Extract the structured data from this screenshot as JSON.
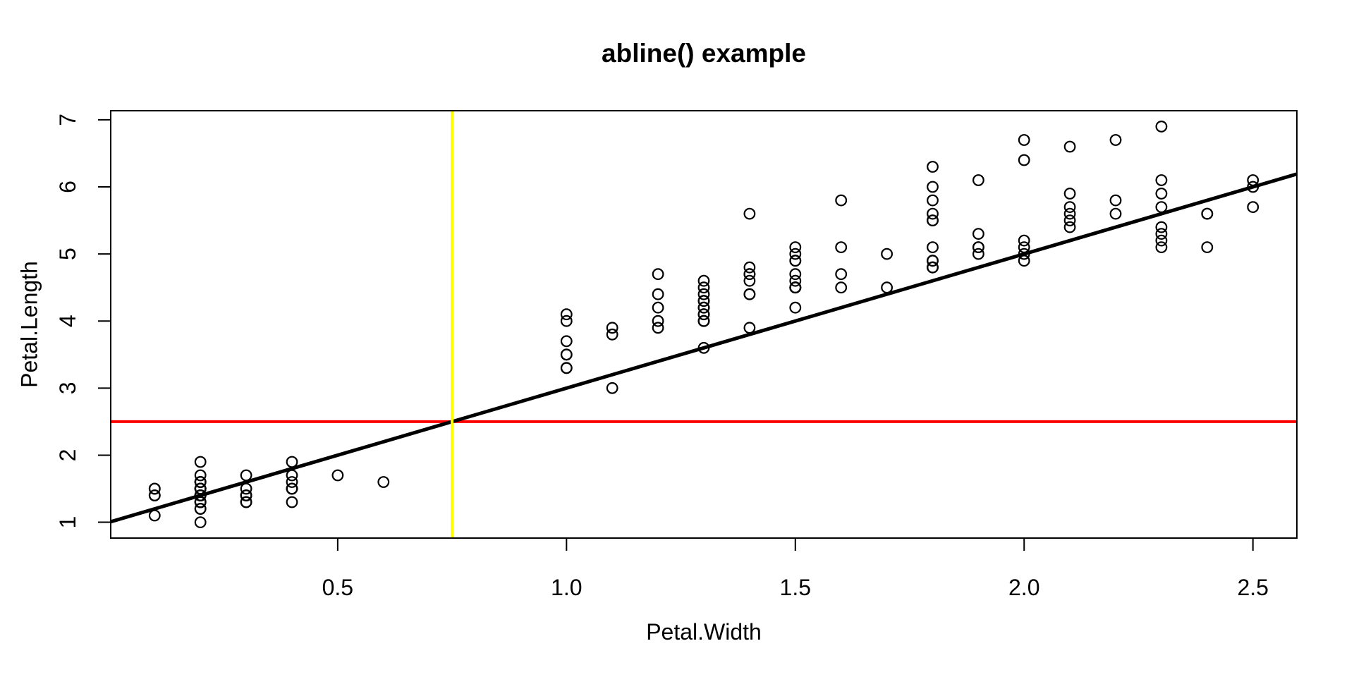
{
  "chart_data": {
    "type": "scatter",
    "title": "abline() example",
    "xlabel": "Petal.Width",
    "ylabel": "Petal.Length",
    "grid": false,
    "legend": "none",
    "background": "#FFFFFF",
    "axis_color": "#000000",
    "point_color": "#000000",
    "xlim": [
      0.004,
      2.596
    ],
    "ylim": [
      0.764,
      7.136
    ],
    "x_ticks": [
      {
        "v": 0.5,
        "label": "0.5"
      },
      {
        "v": 1.0,
        "label": "1.0"
      },
      {
        "v": 1.5,
        "label": "1.5"
      },
      {
        "v": 2.0,
        "label": "2.0"
      },
      {
        "v": 2.5,
        "label": "2.5"
      }
    ],
    "y_ticks": [
      {
        "v": 1,
        "label": "1"
      },
      {
        "v": 2,
        "label": "2"
      },
      {
        "v": 3,
        "label": "3"
      },
      {
        "v": 4,
        "label": "4"
      },
      {
        "v": 5,
        "label": "5"
      },
      {
        "v": 6,
        "label": "6"
      },
      {
        "v": 7,
        "label": "7"
      }
    ],
    "lines": [
      {
        "name": "h-reference-line",
        "kind": "h",
        "y": 2.5,
        "color": "#FF0000",
        "width": 4
      },
      {
        "name": "regression-line",
        "kind": "ab",
        "intercept": 1,
        "slope": 2,
        "color": "#000000",
        "width": 5
      },
      {
        "name": "v-reference-line",
        "kind": "v",
        "x": 0.75,
        "color": "#FFFF00",
        "width": 4
      }
    ],
    "points": [
      [
        0.2,
        1.4
      ],
      [
        0.2,
        1.4
      ],
      [
        0.2,
        1.3
      ],
      [
        0.2,
        1.5
      ],
      [
        0.2,
        1.4
      ],
      [
        0.4,
        1.7
      ],
      [
        0.3,
        1.4
      ],
      [
        0.2,
        1.5
      ],
      [
        0.2,
        1.4
      ],
      [
        0.1,
        1.5
      ],
      [
        0.2,
        1.5
      ],
      [
        0.2,
        1.6
      ],
      [
        0.1,
        1.4
      ],
      [
        0.1,
        1.1
      ],
      [
        0.2,
        1.2
      ],
      [
        0.4,
        1.5
      ],
      [
        0.4,
        1.3
      ],
      [
        0.3,
        1.4
      ],
      [
        0.3,
        1.7
      ],
      [
        0.3,
        1.5
      ],
      [
        0.2,
        1.7
      ],
      [
        0.4,
        1.5
      ],
      [
        0.2,
        1.0
      ],
      [
        0.5,
        1.7
      ],
      [
        0.2,
        1.9
      ],
      [
        0.2,
        1.6
      ],
      [
        0.4,
        1.6
      ],
      [
        0.2,
        1.5
      ],
      [
        0.2,
        1.4
      ],
      [
        0.2,
        1.6
      ],
      [
        0.2,
        1.6
      ],
      [
        0.4,
        1.5
      ],
      [
        0.1,
        1.5
      ],
      [
        0.2,
        1.4
      ],
      [
        0.2,
        1.5
      ],
      [
        0.2,
        1.2
      ],
      [
        0.2,
        1.3
      ],
      [
        0.1,
        1.4
      ],
      [
        0.2,
        1.3
      ],
      [
        0.2,
        1.5
      ],
      [
        0.3,
        1.3
      ],
      [
        0.3,
        1.3
      ],
      [
        0.2,
        1.3
      ],
      [
        0.6,
        1.6
      ],
      [
        0.4,
        1.9
      ],
      [
        0.3,
        1.4
      ],
      [
        0.2,
        1.6
      ],
      [
        0.2,
        1.4
      ],
      [
        0.2,
        1.5
      ],
      [
        0.2,
        1.4
      ],
      [
        1.4,
        4.7
      ],
      [
        1.5,
        4.5
      ],
      [
        1.5,
        4.9
      ],
      [
        1.3,
        4.0
      ],
      [
        1.5,
        4.6
      ],
      [
        1.3,
        4.5
      ],
      [
        1.6,
        4.7
      ],
      [
        1.0,
        3.3
      ],
      [
        1.3,
        4.6
      ],
      [
        1.4,
        3.9
      ],
      [
        1.0,
        3.5
      ],
      [
        1.5,
        4.2
      ],
      [
        1.0,
        4.0
      ],
      [
        1.4,
        4.7
      ],
      [
        1.3,
        3.6
      ],
      [
        1.4,
        4.4
      ],
      [
        1.5,
        4.5
      ],
      [
        1.0,
        4.1
      ],
      [
        1.5,
        4.5
      ],
      [
        1.1,
        3.9
      ],
      [
        1.8,
        4.8
      ],
      [
        1.3,
        4.0
      ],
      [
        1.5,
        4.9
      ],
      [
        1.2,
        4.7
      ],
      [
        1.3,
        4.3
      ],
      [
        1.4,
        4.4
      ],
      [
        1.4,
        4.8
      ],
      [
        1.7,
        5.0
      ],
      [
        1.5,
        4.5
      ],
      [
        1.0,
        3.5
      ],
      [
        1.1,
        3.8
      ],
      [
        1.0,
        3.7
      ],
      [
        1.2,
        3.9
      ],
      [
        1.6,
        5.1
      ],
      [
        1.5,
        4.5
      ],
      [
        1.6,
        4.5
      ],
      [
        1.5,
        4.7
      ],
      [
        1.3,
        4.4
      ],
      [
        1.3,
        4.1
      ],
      [
        1.3,
        4.0
      ],
      [
        1.2,
        4.4
      ],
      [
        1.4,
        4.6
      ],
      [
        1.2,
        4.0
      ],
      [
        1.0,
        3.3
      ],
      [
        1.3,
        4.2
      ],
      [
        1.2,
        4.2
      ],
      [
        1.3,
        4.2
      ],
      [
        1.3,
        4.3
      ],
      [
        1.1,
        3.0
      ],
      [
        1.3,
        4.1
      ],
      [
        2.5,
        6.0
      ],
      [
        1.9,
        5.1
      ],
      [
        2.1,
        5.9
      ],
      [
        1.8,
        5.6
      ],
      [
        2.2,
        5.8
      ],
      [
        2.1,
        6.6
      ],
      [
        1.7,
        4.5
      ],
      [
        1.8,
        6.3
      ],
      [
        1.8,
        5.8
      ],
      [
        2.5,
        6.1
      ],
      [
        2.0,
        5.1
      ],
      [
        1.9,
        5.3
      ],
      [
        2.1,
        5.5
      ],
      [
        2.0,
        5.0
      ],
      [
        2.4,
        5.1
      ],
      [
        2.3,
        5.3
      ],
      [
        1.8,
        5.5
      ],
      [
        2.2,
        6.7
      ],
      [
        2.3,
        6.9
      ],
      [
        1.5,
        5.0
      ],
      [
        2.3,
        5.7
      ],
      [
        2.0,
        4.9
      ],
      [
        2.0,
        6.7
      ],
      [
        1.8,
        4.9
      ],
      [
        2.1,
        5.7
      ],
      [
        1.8,
        6.0
      ],
      [
        1.8,
        4.8
      ],
      [
        1.8,
        4.9
      ],
      [
        2.1,
        5.6
      ],
      [
        1.6,
        5.8
      ],
      [
        1.9,
        6.1
      ],
      [
        2.0,
        6.4
      ],
      [
        2.2,
        5.6
      ],
      [
        1.5,
        5.1
      ],
      [
        1.4,
        5.6
      ],
      [
        2.3,
        6.1
      ],
      [
        2.4,
        5.6
      ],
      [
        1.8,
        5.5
      ],
      [
        1.8,
        4.8
      ],
      [
        2.1,
        5.4
      ],
      [
        2.4,
        5.6
      ],
      [
        2.3,
        5.1
      ],
      [
        1.9,
        5.1
      ],
      [
        2.3,
        5.9
      ],
      [
        2.5,
        5.7
      ],
      [
        2.3,
        5.2
      ],
      [
        1.9,
        5.0
      ],
      [
        2.0,
        5.2
      ],
      [
        2.3,
        5.4
      ],
      [
        1.8,
        5.1
      ]
    ]
  }
}
